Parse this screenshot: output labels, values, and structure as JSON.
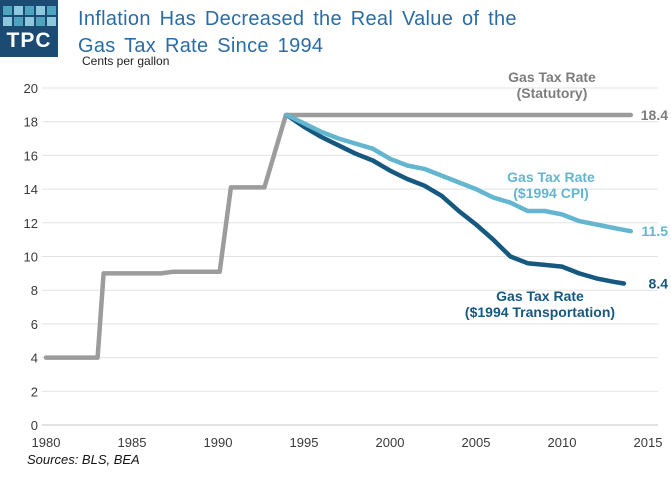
{
  "header": {
    "logo_text": "TPC",
    "logo_bg": "#1B4B73",
    "logo_squares": [
      "#4EA3BE",
      "#8CC7DB",
      "#4EA3BE",
      "#8CC7DB",
      "#4EA3BE",
      "#8CC7DB",
      "#4EA3BE",
      "#8CC7DB",
      "#4EA3BE",
      "#8CC7DB"
    ],
    "title_line1": "Inflation Has Decreased the Real Value of the",
    "title_line2": "Gas Tax Rate Since 1994",
    "title_color": "#2A6CA6"
  },
  "chart": {
    "source_note": "Sources: BLS, BEA"
  },
  "chart_data": {
    "type": "line",
    "title": "Inflation Has Decreased the Real Value of the Gas Tax Rate Since 1994",
    "xlabel": "",
    "ylabel": "Cents per gallon",
    "ylim": [
      0,
      20
    ],
    "ytick_step": 2,
    "xlim": [
      1980,
      2015
    ],
    "xticks": [
      1980,
      1985,
      1990,
      1995,
      2000,
      2005,
      2010,
      2015
    ],
    "grid": true,
    "legend": "inline labels near lines",
    "series": [
      {
        "id": "statutory",
        "name": "Gas Tax Rate (Statutory)",
        "label_lines": [
          "Gas Tax Rate",
          "(Statutory)"
        ],
        "color": "#9C9C9C",
        "label_color": "#7D7D7D",
        "end_label": "18.4",
        "points": [
          [
            1980,
            4
          ],
          [
            1983,
            4
          ],
          [
            1983.35,
            9
          ],
          [
            1986.7,
            9
          ],
          [
            1987.4,
            9.1
          ],
          [
            1990.1,
            9.1
          ],
          [
            1990.75,
            14.1
          ],
          [
            1992.7,
            14.1
          ],
          [
            1993.95,
            18.4
          ],
          [
            2014,
            18.4
          ]
        ]
      },
      {
        "id": "cpi-1994",
        "name": "Gas Tax Rate ($1994 CPI)",
        "label_lines": [
          "Gas Tax Rate",
          "($1994 CPI)"
        ],
        "color": "#64B5CF",
        "label_color": "#64B5CF",
        "end_label": "11.5",
        "points": [
          [
            1994,
            18.4
          ],
          [
            1995,
            17.9
          ],
          [
            1996,
            17.4
          ],
          [
            1997,
            17.0
          ],
          [
            1998,
            16.7
          ],
          [
            1999,
            16.4
          ],
          [
            2000,
            15.8
          ],
          [
            2001,
            15.4
          ],
          [
            2002,
            15.2
          ],
          [
            2003,
            14.8
          ],
          [
            2004,
            14.4
          ],
          [
            2005,
            14.0
          ],
          [
            2006,
            13.5
          ],
          [
            2007,
            13.2
          ],
          [
            2008,
            12.7
          ],
          [
            2009,
            12.7
          ],
          [
            2010,
            12.5
          ],
          [
            2011,
            12.1
          ],
          [
            2012,
            11.9
          ],
          [
            2013,
            11.7
          ],
          [
            2014,
            11.5
          ]
        ]
      },
      {
        "id": "transportation-1994",
        "name": "Gas Tax Rate ($1994 Transportation)",
        "label_lines": [
          "Gas Tax Rate",
          "($1994 Transportation)"
        ],
        "color": "#155880",
        "label_color": "#155880",
        "end_label": "8.4",
        "points": [
          [
            1994,
            18.4
          ],
          [
            1995,
            17.7
          ],
          [
            1996,
            17.1
          ],
          [
            1997,
            16.6
          ],
          [
            1998,
            16.1
          ],
          [
            1999,
            15.7
          ],
          [
            2000,
            15.1
          ],
          [
            2001,
            14.6
          ],
          [
            2002,
            14.2
          ],
          [
            2003,
            13.6
          ],
          [
            2004,
            12.7
          ],
          [
            2005,
            11.9
          ],
          [
            2006,
            11.0
          ],
          [
            2007,
            10.0
          ],
          [
            2008,
            9.6
          ],
          [
            2009,
            9.5
          ],
          [
            2010,
            9.4
          ],
          [
            2011,
            9.0
          ],
          [
            2012,
            8.7
          ],
          [
            2013,
            8.5
          ],
          [
            2013.6,
            8.4
          ]
        ]
      }
    ]
  }
}
